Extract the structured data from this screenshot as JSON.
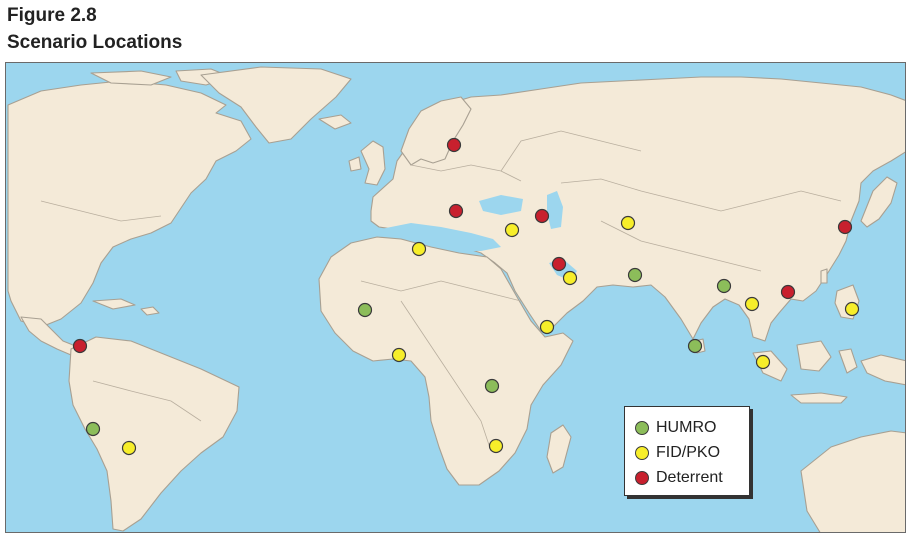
{
  "figure": {
    "label": "Figure 2.8",
    "title": "Scenario Locations"
  },
  "legend": [
    {
      "key": "humro",
      "label": "HUMRO",
      "color": "#8cbd5a"
    },
    {
      "key": "fidpko",
      "label": "FID/PKO",
      "color": "#f7ee2a"
    },
    {
      "key": "deterrent",
      "label": "Deterrent",
      "color": "#c8202e"
    }
  ],
  "colors": {
    "ocean": "#9cd6ee",
    "land": "#f4ead8",
    "coast": "#a8a092"
  },
  "markers_by_category": {
    "humro": 6,
    "fidpko": 14,
    "deterrent": 8
  }
}
